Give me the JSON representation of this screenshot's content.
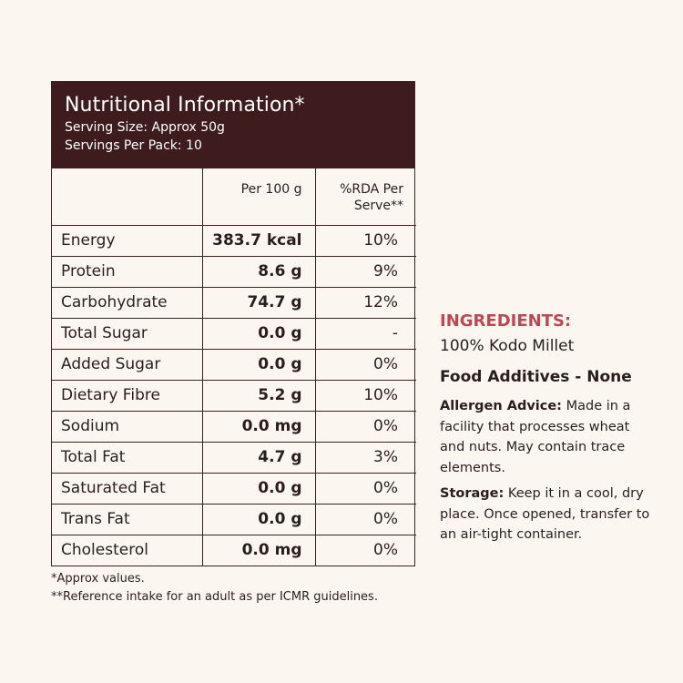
{
  "panel": {
    "title": "Nutritional Information*",
    "serving_size": "Serving Size: Approx 50g",
    "servings_per_pack": "Servings Per Pack: 10",
    "columns": {
      "nutrient": "",
      "per100": "Per 100 g",
      "rda": "%RDA Per Serve**"
    },
    "rows": [
      {
        "name": "Energy",
        "per100": "383.7 kcal",
        "rda": "10%"
      },
      {
        "name": "Protein",
        "per100": "8.6 g",
        "rda": "9%"
      },
      {
        "name": "Carbohydrate",
        "per100": "74.7 g",
        "rda": "12%"
      },
      {
        "name": "Total Sugar",
        "per100": "0.0 g",
        "rda": "-"
      },
      {
        "name": "Added Sugar",
        "per100": "0.0 g",
        "rda": "0%"
      },
      {
        "name": "Dietary Fibre",
        "per100": "5.2 g",
        "rda": "10%"
      },
      {
        "name": "Sodium",
        "per100": "0.0 mg",
        "rda": "0%"
      },
      {
        "name": "Total Fat",
        "per100": "4.7 g",
        "rda": "3%"
      },
      {
        "name": "Saturated Fat",
        "per100": "0.0 g",
        "rda": "0%"
      },
      {
        "name": "Trans Fat",
        "per100": "0.0 g",
        "rda": "0%"
      },
      {
        "name": "Cholesterol",
        "per100": "0.0 mg",
        "rda": "0%"
      }
    ]
  },
  "notes": {
    "approx": "*Approx values.",
    "reference": "**Reference intake for an adult as per ICMR guidelines."
  },
  "ingredients": {
    "heading": "INGREDIENTS:",
    "value": "100% Kodo Millet",
    "additives": "Food Additives - None",
    "allergen_label": "Allergen Advice:",
    "allergen_text": "Made in a facility that processes wheat and nuts. May contain trace elements.",
    "storage_label": "Storage:",
    "storage_text": "Keep it in a cool, dry place. Once opened, transfer to an air-tight container."
  },
  "colors": {
    "header_bg": "#3e1c1e",
    "accent": "#b94a55",
    "background": "#fbf7f0"
  }
}
